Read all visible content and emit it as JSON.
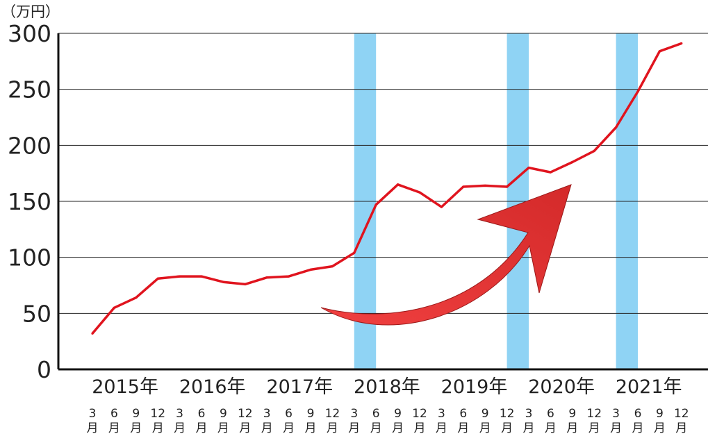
{
  "chart_data": {
    "type": "line",
    "unit_label": "（万円）",
    "ylim": [
      0,
      300
    ],
    "y_ticks": [
      "0",
      "50",
      "100",
      "150",
      "200",
      "250",
      "300"
    ],
    "grid": true,
    "month_suffix": "月",
    "years": [
      "2015年",
      "2016年",
      "2017年",
      "2018年",
      "2019年",
      "2020年",
      "2021年"
    ],
    "months": [
      "3",
      "6",
      "9",
      "12",
      "3",
      "6",
      "9",
      "12",
      "3",
      "6",
      "9",
      "12",
      "3",
      "6",
      "9",
      "12",
      "3",
      "6",
      "9",
      "12",
      "3",
      "6",
      "9",
      "12",
      "3",
      "6",
      "9",
      "12"
    ],
    "x": [
      "2015-03",
      "2015-06",
      "2015-09",
      "2015-12",
      "2016-03",
      "2016-06",
      "2016-09",
      "2016-12",
      "2017-03",
      "2017-06",
      "2017-09",
      "2017-12",
      "2018-03",
      "2018-06",
      "2018-09",
      "2018-12",
      "2019-03",
      "2019-06",
      "2019-09",
      "2019-12",
      "2020-03",
      "2020-06",
      "2020-09",
      "2020-12",
      "2021-03",
      "2021-06",
      "2021-09",
      "2021-12"
    ],
    "series": [
      {
        "values": [
          32,
          55,
          64,
          81,
          83,
          83,
          78,
          76,
          82,
          83,
          89,
          92,
          104,
          147,
          165,
          158,
          145,
          163,
          164,
          163,
          180,
          176,
          185,
          195,
          216,
          248,
          284,
          291
        ],
        "color": "#e0141e"
      }
    ],
    "highlight_bands": [
      {
        "from": "2018-03",
        "to": "2018-06",
        "color": "#8fd3f4"
      },
      {
        "from": "2019-12",
        "to": "2019-12",
        "color": "#8fd3f4"
      },
      {
        "from": "2021-03",
        "to": "2021-06",
        "color": "#8fd3f4"
      }
    ],
    "arrow": {
      "direction": "upward trend",
      "color": "#d42a2a"
    }
  }
}
